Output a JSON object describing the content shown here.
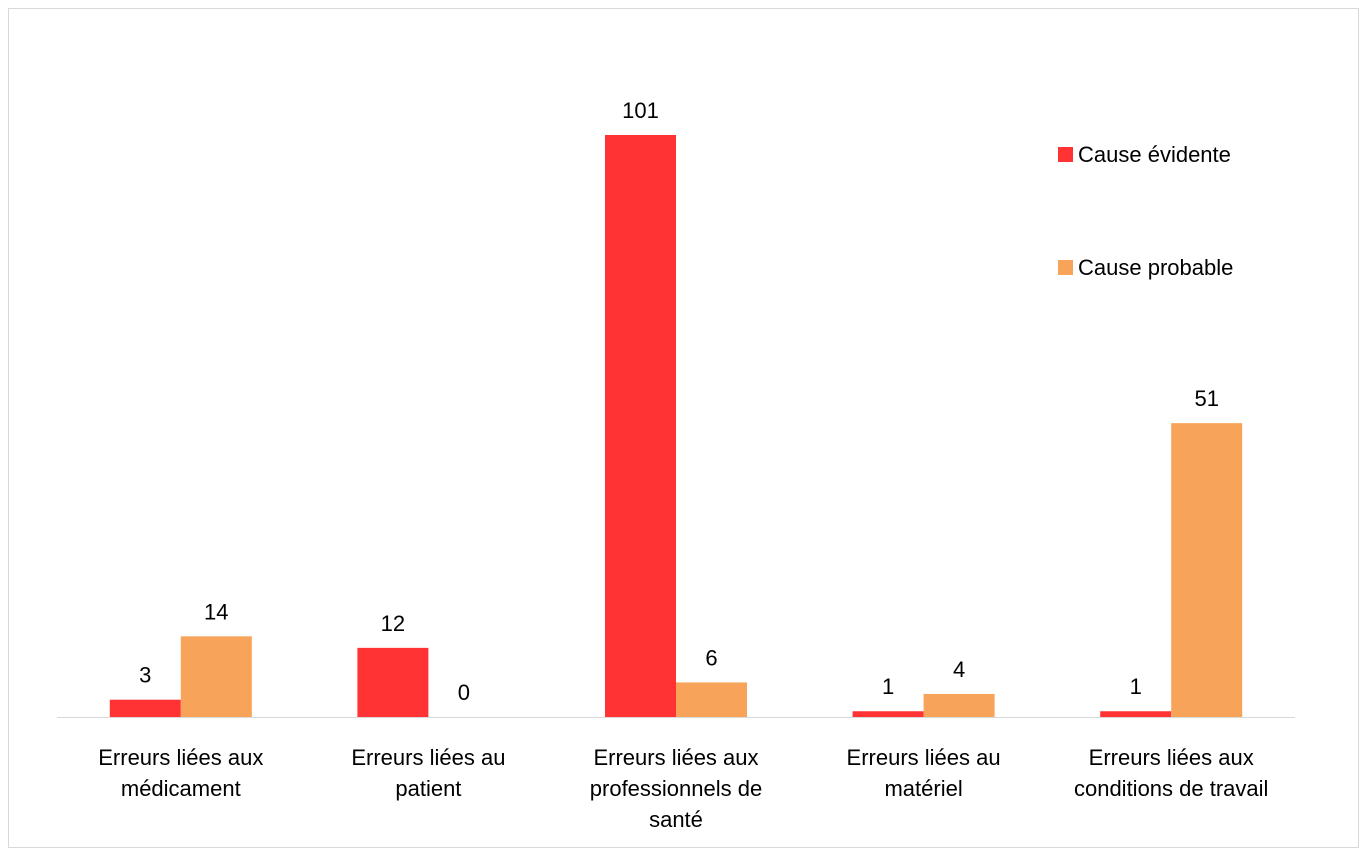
{
  "chart_data": {
    "type": "bar",
    "categories": [
      [
        "Erreurs liées aux",
        "médicament"
      ],
      [
        "Erreurs liées au",
        "patient"
      ],
      [
        "Erreurs liées aux",
        "professionnels de",
        "santé"
      ],
      [
        "Erreurs liées au",
        "matériel"
      ],
      [
        "Erreurs liées aux",
        "conditions de travail"
      ]
    ],
    "series": [
      {
        "name": "Cause évidente",
        "color": "#ff3333",
        "values": [
          3,
          12,
          101,
          1,
          1
        ]
      },
      {
        "name": "Cause probable",
        "color": "#f8a35a",
        "values": [
          14,
          0,
          6,
          4,
          51
        ]
      }
    ],
    "data_labels": true,
    "legend": "right",
    "grid": false,
    "title": "",
    "xlabel": "",
    "ylabel": ""
  }
}
